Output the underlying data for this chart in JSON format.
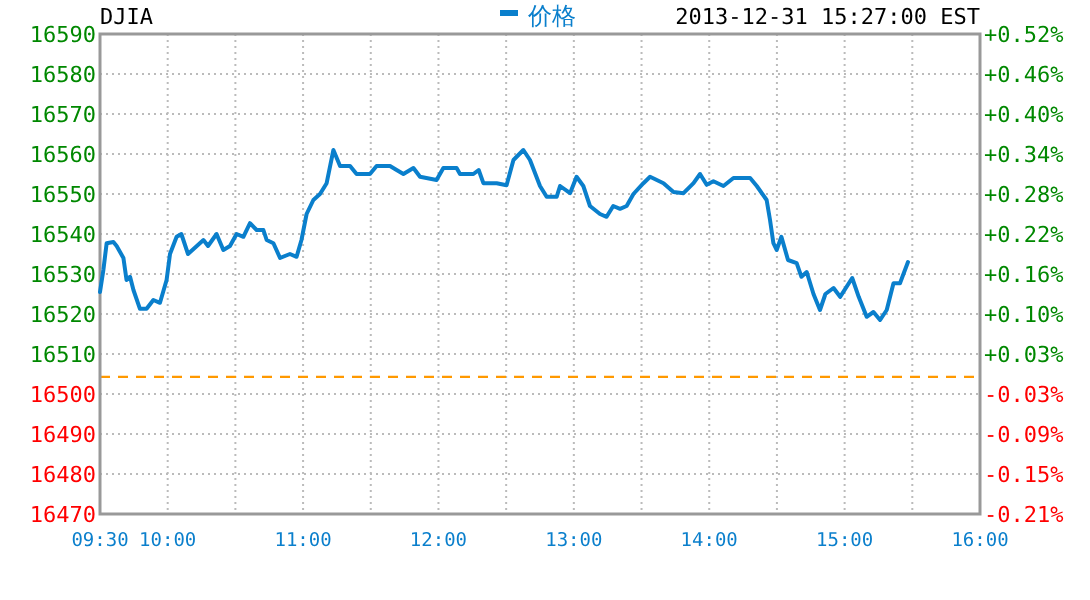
{
  "chart_data": {
    "type": "line",
    "title": "DJIA",
    "subtitle": "2013-12-31 15:27:00 EST",
    "x": [
      9.5,
      9.525,
      9.549,
      9.599,
      9.623,
      9.673,
      9.696,
      9.722,
      9.747,
      9.795,
      9.844,
      9.894,
      9.943,
      9.992,
      10.017,
      10.066,
      10.101,
      10.15,
      10.264,
      10.298,
      10.361,
      10.411,
      10.46,
      10.509,
      10.559,
      10.608,
      10.657,
      10.707,
      10.731,
      10.781,
      10.83,
      10.903,
      10.952,
      10.988,
      11.026,
      11.076,
      11.125,
      11.174,
      11.224,
      11.273,
      11.347,
      11.395,
      11.494,
      11.543,
      11.642,
      11.691,
      11.741,
      11.815,
      11.864,
      11.986,
      12.036,
      12.134,
      12.159,
      12.258,
      12.297,
      12.332,
      12.43,
      12.503,
      12.554,
      12.627,
      12.676,
      12.75,
      12.799,
      12.873,
      12.898,
      12.972,
      13.02,
      13.07,
      13.119,
      13.193,
      13.242,
      13.291,
      13.341,
      13.39,
      13.44,
      13.514,
      13.563,
      13.662,
      13.736,
      13.81,
      13.884,
      13.932,
      13.981,
      14.031,
      14.105,
      14.179,
      14.302,
      14.351,
      14.424,
      14.449,
      14.474,
      14.498,
      14.533,
      14.582,
      14.646,
      14.681,
      14.72,
      14.77,
      14.818,
      14.858,
      14.918,
      14.967,
      15.056,
      15.104,
      15.163,
      15.213,
      15.262,
      15.311,
      15.361,
      15.409,
      15.468
    ],
    "series": [
      {
        "name": "价格",
        "color": "#0a7fcc",
        "values": [
          16525.5,
          16531,
          16537.7,
          16538,
          16537,
          16534,
          16528.5,
          16529.3,
          16526,
          16521.3,
          16521.3,
          16523.5,
          16522.8,
          16528.5,
          16535,
          16539.3,
          16540,
          16535,
          16538.5,
          16537,
          16540,
          16536,
          16537,
          16540,
          16539.3,
          16542.7,
          16541,
          16541,
          16538.5,
          16537.7,
          16534,
          16535,
          16534.3,
          16538.5,
          16545,
          16548.5,
          16550,
          16552.7,
          16561,
          16557,
          16557,
          16555,
          16555,
          16557,
          16557,
          16556,
          16555,
          16556.5,
          16554.3,
          16553.5,
          16556.5,
          16556.5,
          16555,
          16555,
          16556,
          16552.7,
          16552.7,
          16552.2,
          16558.5,
          16561,
          16558.5,
          16552,
          16549.3,
          16549.3,
          16552,
          16550.2,
          16554.3,
          16552,
          16547,
          16545,
          16544.3,
          16547,
          16546.3,
          16547,
          16550,
          16552.7,
          16554.3,
          16552.7,
          16550.5,
          16550.2,
          16552.7,
          16555,
          16552.3,
          16553.2,
          16552,
          16554,
          16554,
          16552,
          16548.5,
          16543.5,
          16537.7,
          16536,
          16539.3,
          16533.5,
          16532.7,
          16529.3,
          16530.5,
          16525,
          16521,
          16525,
          16526.5,
          16524.3,
          16529,
          16524.3,
          16519.3,
          16520.5,
          16518.5,
          16521,
          16527.7,
          16527.7,
          16533
        ]
      }
    ],
    "xlim": [
      9.5,
      16
    ],
    "xticks": [
      {
        "value": 9.5,
        "label": "09:30"
      },
      {
        "value": 10,
        "label": "10:00"
      },
      {
        "value": 10.5,
        "label": null
      },
      {
        "value": 11,
        "label": "11:00"
      },
      {
        "value": 11.5,
        "label": null
      },
      {
        "value": 12,
        "label": "12:00"
      },
      {
        "value": 12.5,
        "label": null
      },
      {
        "value": 13,
        "label": "13:00"
      },
      {
        "value": 13.5,
        "label": null
      },
      {
        "value": 14,
        "label": "14:00"
      },
      {
        "value": 14.5,
        "label": null
      },
      {
        "value": 15,
        "label": "15:00"
      },
      {
        "value": 15.5,
        "label": null
      },
      {
        "value": 16,
        "label": "16:00"
      }
    ],
    "ylim": [
      16470,
      16590
    ],
    "yticks": [
      16470,
      16480,
      16490,
      16500,
      16510,
      16520,
      16530,
      16540,
      16550,
      16560,
      16570,
      16580,
      16590
    ],
    "y2lim": [
      -0.2078,
      0.5193
    ],
    "y2ticks": [
      {
        "value": -0.2078,
        "label": "-0.21%"
      },
      {
        "value": -0.1472,
        "label": "-0.15%"
      },
      {
        "value": -0.0866,
        "label": "-0.09%"
      },
      {
        "value": -0.026,
        "label": "-0.03%"
      },
      {
        "value": 0.0346,
        "label": "+0.03%"
      },
      {
        "value": 0.0951,
        "label": "+0.10%"
      },
      {
        "value": 0.1557,
        "label": "+0.16%"
      },
      {
        "value": 0.2163,
        "label": "+0.22%"
      },
      {
        "value": 0.2769,
        "label": "+0.28%"
      },
      {
        "value": 0.3375,
        "label": "+0.34%"
      },
      {
        "value": 0.3981,
        "label": "+0.40%"
      },
      {
        "value": 0.4587,
        "label": "+0.46%"
      },
      {
        "value": 0.5193,
        "label": "+0.52%"
      }
    ],
    "ref_lines": [
      {
        "axis": "y",
        "value": 16504.29,
        "color": "#ff9900",
        "line_style": "dashed"
      }
    ],
    "grid": true,
    "legend": "top",
    "line_style": "solid"
  }
}
